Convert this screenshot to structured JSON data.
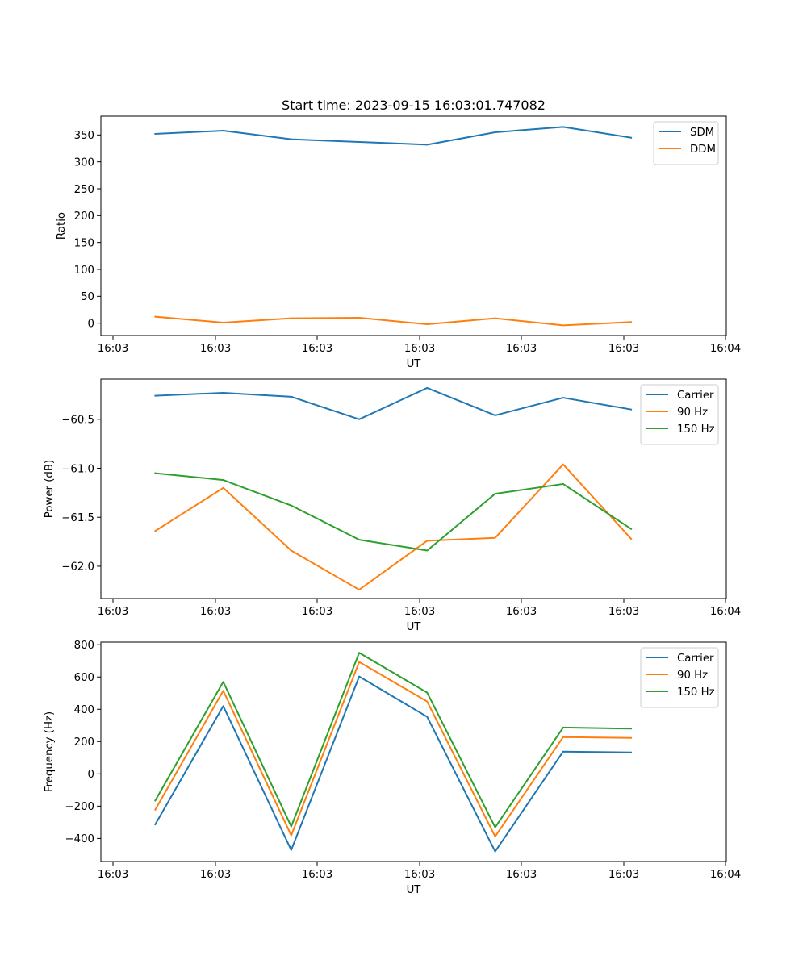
{
  "figure_title": "Start time: 2023-09-15 16:03:01.747082",
  "chart_data": [
    {
      "type": "line",
      "title": "Start time: 2023-09-15 16:03:01.747082",
      "xlabel": "UT",
      "ylabel": "Ratio",
      "x_ticks": [
        "16:03",
        "16:03",
        "16:03",
        "16:03",
        "16:03",
        "16:03",
        "16:04"
      ],
      "x": [
        1,
        2,
        3,
        4,
        5,
        6,
        7,
        8
      ],
      "xlim": [
        0.2,
        9.4
      ],
      "ylim": [
        -23,
        385
      ],
      "y_ticks": [
        0,
        50,
        100,
        150,
        200,
        250,
        300,
        350
      ],
      "y_tick_labels": [
        "0",
        "50",
        "100",
        "150",
        "200",
        "250",
        "300",
        "350"
      ],
      "legend_position": "top-right",
      "series": [
        {
          "name": "SDM",
          "color": "#1f77b4",
          "values": [
            352,
            358,
            342,
            337,
            332,
            355,
            365,
            345
          ]
        },
        {
          "name": "DDM",
          "color": "#ff7f0e",
          "values": [
            12,
            1,
            9,
            10,
            -2,
            9,
            -4,
            2
          ]
        }
      ]
    },
    {
      "type": "line",
      "title": "",
      "xlabel": "UT",
      "ylabel": "Power (dB)",
      "x_ticks": [
        "16:03",
        "16:03",
        "16:03",
        "16:03",
        "16:03",
        "16:03",
        "16:04"
      ],
      "x": [
        1,
        2,
        3,
        4,
        5,
        6,
        7,
        8
      ],
      "xlim": [
        0.2,
        9.4
      ],
      "ylim": [
        -62.33,
        -60.09
      ],
      "y_ticks": [
        -60.5,
        -61.0,
        -61.5,
        -62.0
      ],
      "y_tick_labels": [
        "−60.5",
        "−61.0",
        "−61.5",
        "−62.0"
      ],
      "legend_position": "top-right",
      "series": [
        {
          "name": "Carrier",
          "color": "#1f77b4",
          "values": [
            -60.26,
            -60.23,
            -60.27,
            -60.5,
            -60.18,
            -60.46,
            -60.28,
            -60.4
          ]
        },
        {
          "name": "90 Hz",
          "color": "#ff7f0e",
          "values": [
            -61.64,
            -61.2,
            -61.84,
            -62.24,
            -61.74,
            -61.71,
            -60.96,
            -61.72
          ]
        },
        {
          "name": "150 Hz",
          "color": "#2ca02c",
          "values": [
            -61.05,
            -61.12,
            -61.38,
            -61.73,
            -61.84,
            -61.26,
            -61.16,
            -61.62
          ]
        }
      ]
    },
    {
      "type": "line",
      "title": "",
      "xlabel": "UT",
      "ylabel": "Frequency (Hz)",
      "x_ticks": [
        "16:03",
        "16:03",
        "16:03",
        "16:03",
        "16:03",
        "16:03",
        "16:04"
      ],
      "x": [
        1,
        2,
        3,
        4,
        5,
        6,
        7,
        8
      ],
      "xlim": [
        0.2,
        9.4
      ],
      "ylim": [
        -543,
        816
      ],
      "y_ticks": [
        -400,
        -200,
        0,
        200,
        400,
        600,
        800
      ],
      "y_tick_labels": [
        "−400",
        "−200",
        "0",
        "200",
        "400",
        "600",
        "800"
      ],
      "legend_position": "top-right",
      "series": [
        {
          "name": "Carrier",
          "color": "#1f77b4",
          "values": [
            -313,
            420,
            -472,
            603,
            353,
            -481,
            138,
            133
          ]
        },
        {
          "name": "90 Hz",
          "color": "#ff7f0e",
          "values": [
            -222,
            515,
            -381,
            693,
            448,
            -388,
            228,
            223
          ]
        },
        {
          "name": "150 Hz",
          "color": "#2ca02c",
          "values": [
            -165,
            570,
            -326,
            750,
            503,
            -331,
            287,
            280
          ]
        }
      ]
    }
  ]
}
